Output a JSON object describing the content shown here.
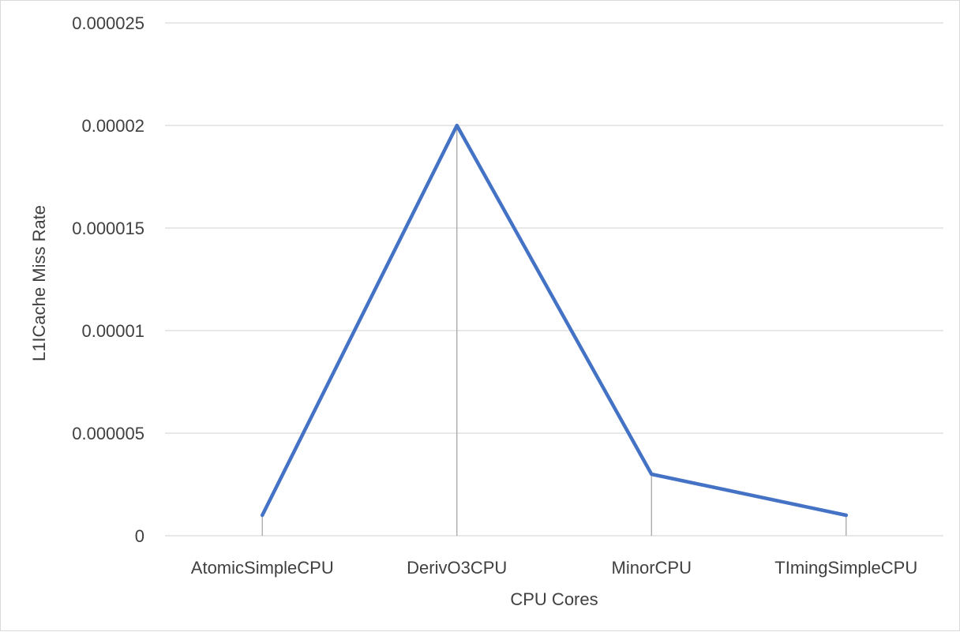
{
  "chart_data": {
    "type": "line",
    "categories": [
      "AtomicSimpleCPU",
      "DerivO3CPU",
      "MinorCPU",
      "TImingSimpleCPU"
    ],
    "series": [
      {
        "values": [
          1e-06,
          2e-05,
          3e-06,
          1e-06
        ]
      }
    ],
    "xlabel": "CPU Cores",
    "ylabel": "L1ICache Miss Rate",
    "ylim": [
      0,
      2.5e-05
    ],
    "yticks": [
      "0",
      "0.000005",
      "0.00001",
      "0.000015",
      "0.00002",
      "0.000025"
    ],
    "ytick_values": [
      0,
      5e-06,
      1e-05,
      1.5e-05,
      2e-05,
      2.5e-05
    ],
    "grid": true,
    "drop_lines": true,
    "line_color": "#4472c4",
    "grid_color": "#d9d9d9",
    "drop_line_color": "#a6a6a6"
  }
}
